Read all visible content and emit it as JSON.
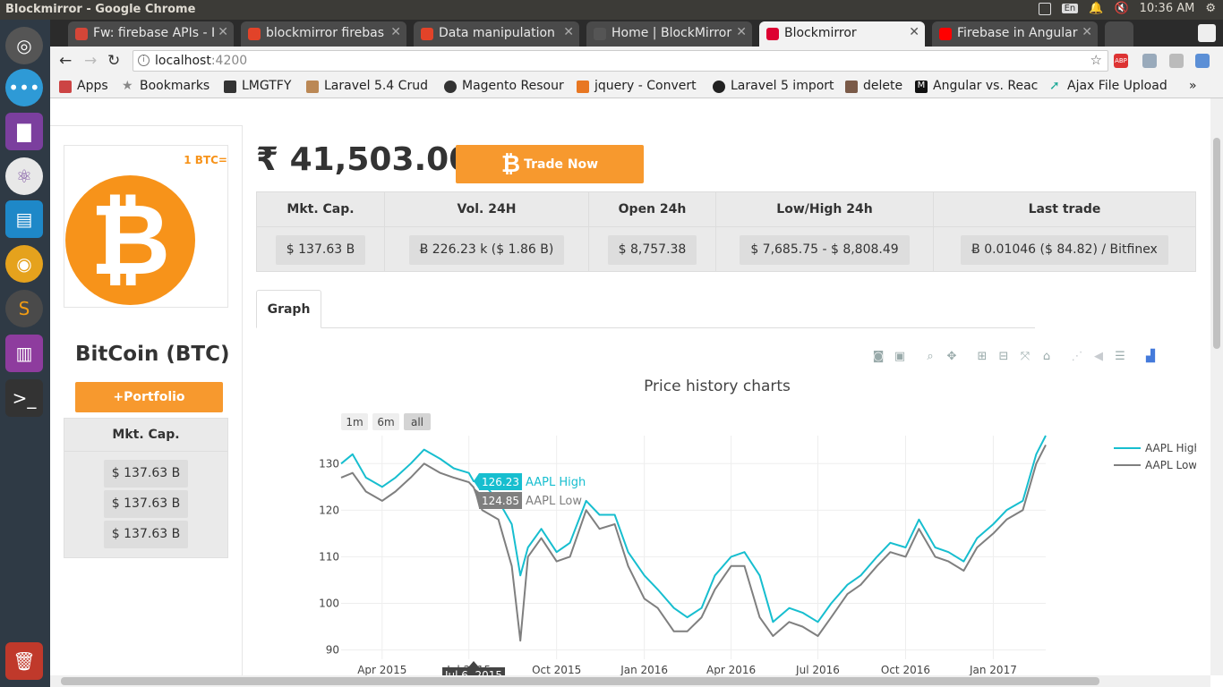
{
  "window": {
    "title": "Blockmirror - Google Chrome",
    "lang": "En",
    "time": "10:36 AM"
  },
  "tabs": [
    {
      "label": "Fw: firebase APIs - I",
      "color": "#d44638"
    },
    {
      "label": "blockmirror firebas",
      "color": "#e24329"
    },
    {
      "label": "Data manipulation",
      "color": "#e24329"
    },
    {
      "label": "Home | BlockMirror",
      "color": "#555555"
    },
    {
      "label": "Blockmirror",
      "color": "#dd0031"
    },
    {
      "label": "Firebase in Angular",
      "color": "#ff0000"
    }
  ],
  "omnibox": {
    "host": "localhost",
    "port": ":4200"
  },
  "extensions": {
    "abp": "ABP"
  },
  "bookmarks": [
    "Apps",
    "Bookmarks",
    "LMGTFY",
    "Laravel 5.4 Crud",
    "Magento Resour",
    "jquery - Convert",
    "Laravel 5 import",
    "delete",
    "Angular vs. Reac",
    "Ajax File Upload"
  ],
  "bookmarks_more": "»",
  "sidebar": {
    "btc_rate": "1 BTC=",
    "coin_glyph": "₿",
    "coin_name": "BitCoin (BTC)",
    "portfolio_label": "+Portfolio",
    "mini_header": "Mkt. Cap.",
    "mini_values": [
      "$ 137.63 B",
      "$ 137.63 B",
      "$ 137.63 B"
    ]
  },
  "main": {
    "price": "₹ 41,503.000",
    "trade_label": "Trade Now",
    "trade_glyph": "₿",
    "stats": [
      {
        "label": "Mkt. Cap.",
        "value": "$ 137.63 B"
      },
      {
        "label": "Vol. 24H",
        "value": "Ƀ 226.23 k ($ 1.86 B)"
      },
      {
        "label": "Open 24h",
        "value": "$ 8,757.38"
      },
      {
        "label": "Low/High 24h",
        "value": "$ 7,685.75 - $ 8,808.49"
      },
      {
        "label": "Last trade",
        "value": "Ƀ 0.01046 ($ 84.82) / Bitfinex"
      }
    ],
    "tab_label": "Graph"
  },
  "chart_data": {
    "type": "line",
    "title": "Price history charts",
    "range_buttons": [
      "1m",
      "6m",
      "all"
    ],
    "active_range": "all",
    "x_ticks": [
      "Apr 2015",
      "Jul 2015",
      "Oct 2015",
      "Jan 2016",
      "Apr 2016",
      "Jul 2016",
      "Oct 2016",
      "Jan 2017"
    ],
    "y_ticks": [
      90,
      100,
      110,
      120,
      130
    ],
    "ylim": [
      88,
      136
    ],
    "x": [
      "2015-02-17",
      "2015-03-01",
      "2015-03-15",
      "2015-04-01",
      "2015-04-15",
      "2015-05-01",
      "2015-05-15",
      "2015-06-01",
      "2015-06-15",
      "2015-07-01",
      "2015-07-06",
      "2015-07-15",
      "2015-08-01",
      "2015-08-15",
      "2015-08-24",
      "2015-09-01",
      "2015-09-15",
      "2015-10-01",
      "2015-10-15",
      "2015-11-01",
      "2015-11-15",
      "2015-12-01",
      "2015-12-15",
      "2016-01-01",
      "2016-01-15",
      "2016-02-01",
      "2016-02-15",
      "2016-03-01",
      "2016-03-15",
      "2016-04-01",
      "2016-04-15",
      "2016-05-01",
      "2016-05-15",
      "2016-06-01",
      "2016-06-15",
      "2016-07-01",
      "2016-07-15",
      "2016-08-01",
      "2016-08-15",
      "2016-09-01",
      "2016-09-15",
      "2016-10-01",
      "2016-10-15",
      "2016-11-01",
      "2016-11-15",
      "2016-12-01",
      "2016-12-15",
      "2017-01-01",
      "2017-01-15",
      "2017-02-01",
      "2017-02-15",
      "2017-02-25"
    ],
    "series": [
      {
        "name": "AAPL High",
        "color": "#17becf",
        "values": [
          130,
          132,
          127,
          125,
          127,
          130,
          133,
          131,
          129,
          128,
          126.2,
          126,
          122,
          117,
          106,
          112,
          116,
          111,
          113,
          122,
          119,
          119,
          111,
          106,
          103,
          99,
          97,
          99,
          106,
          110,
          111,
          106,
          96,
          99,
          98,
          96,
          100,
          104,
          106,
          110,
          113,
          112,
          118,
          112,
          111,
          109,
          114,
          117,
          120,
          122,
          132,
          136
        ]
      },
      {
        "name": "AAPL Low",
        "color": "#7f7f7f",
        "values": [
          127,
          128,
          124,
          122,
          124,
          127,
          130,
          128,
          127,
          126,
          124.9,
          120,
          118,
          108,
          92,
          110,
          114,
          109,
          110,
          120,
          116,
          117,
          108,
          101,
          99,
          94,
          94,
          97,
          103,
          108,
          108,
          97,
          93,
          96,
          95,
          93,
          97,
          102,
          104,
          108,
          111,
          110,
          116,
          110,
          109,
          107,
          112,
          115,
          118,
          120,
          130,
          134
        ]
      }
    ],
    "hover": {
      "x": "Jul 6, 2015",
      "high": "126.23",
      "low": "124.85"
    },
    "grid": true,
    "legend": "right"
  }
}
